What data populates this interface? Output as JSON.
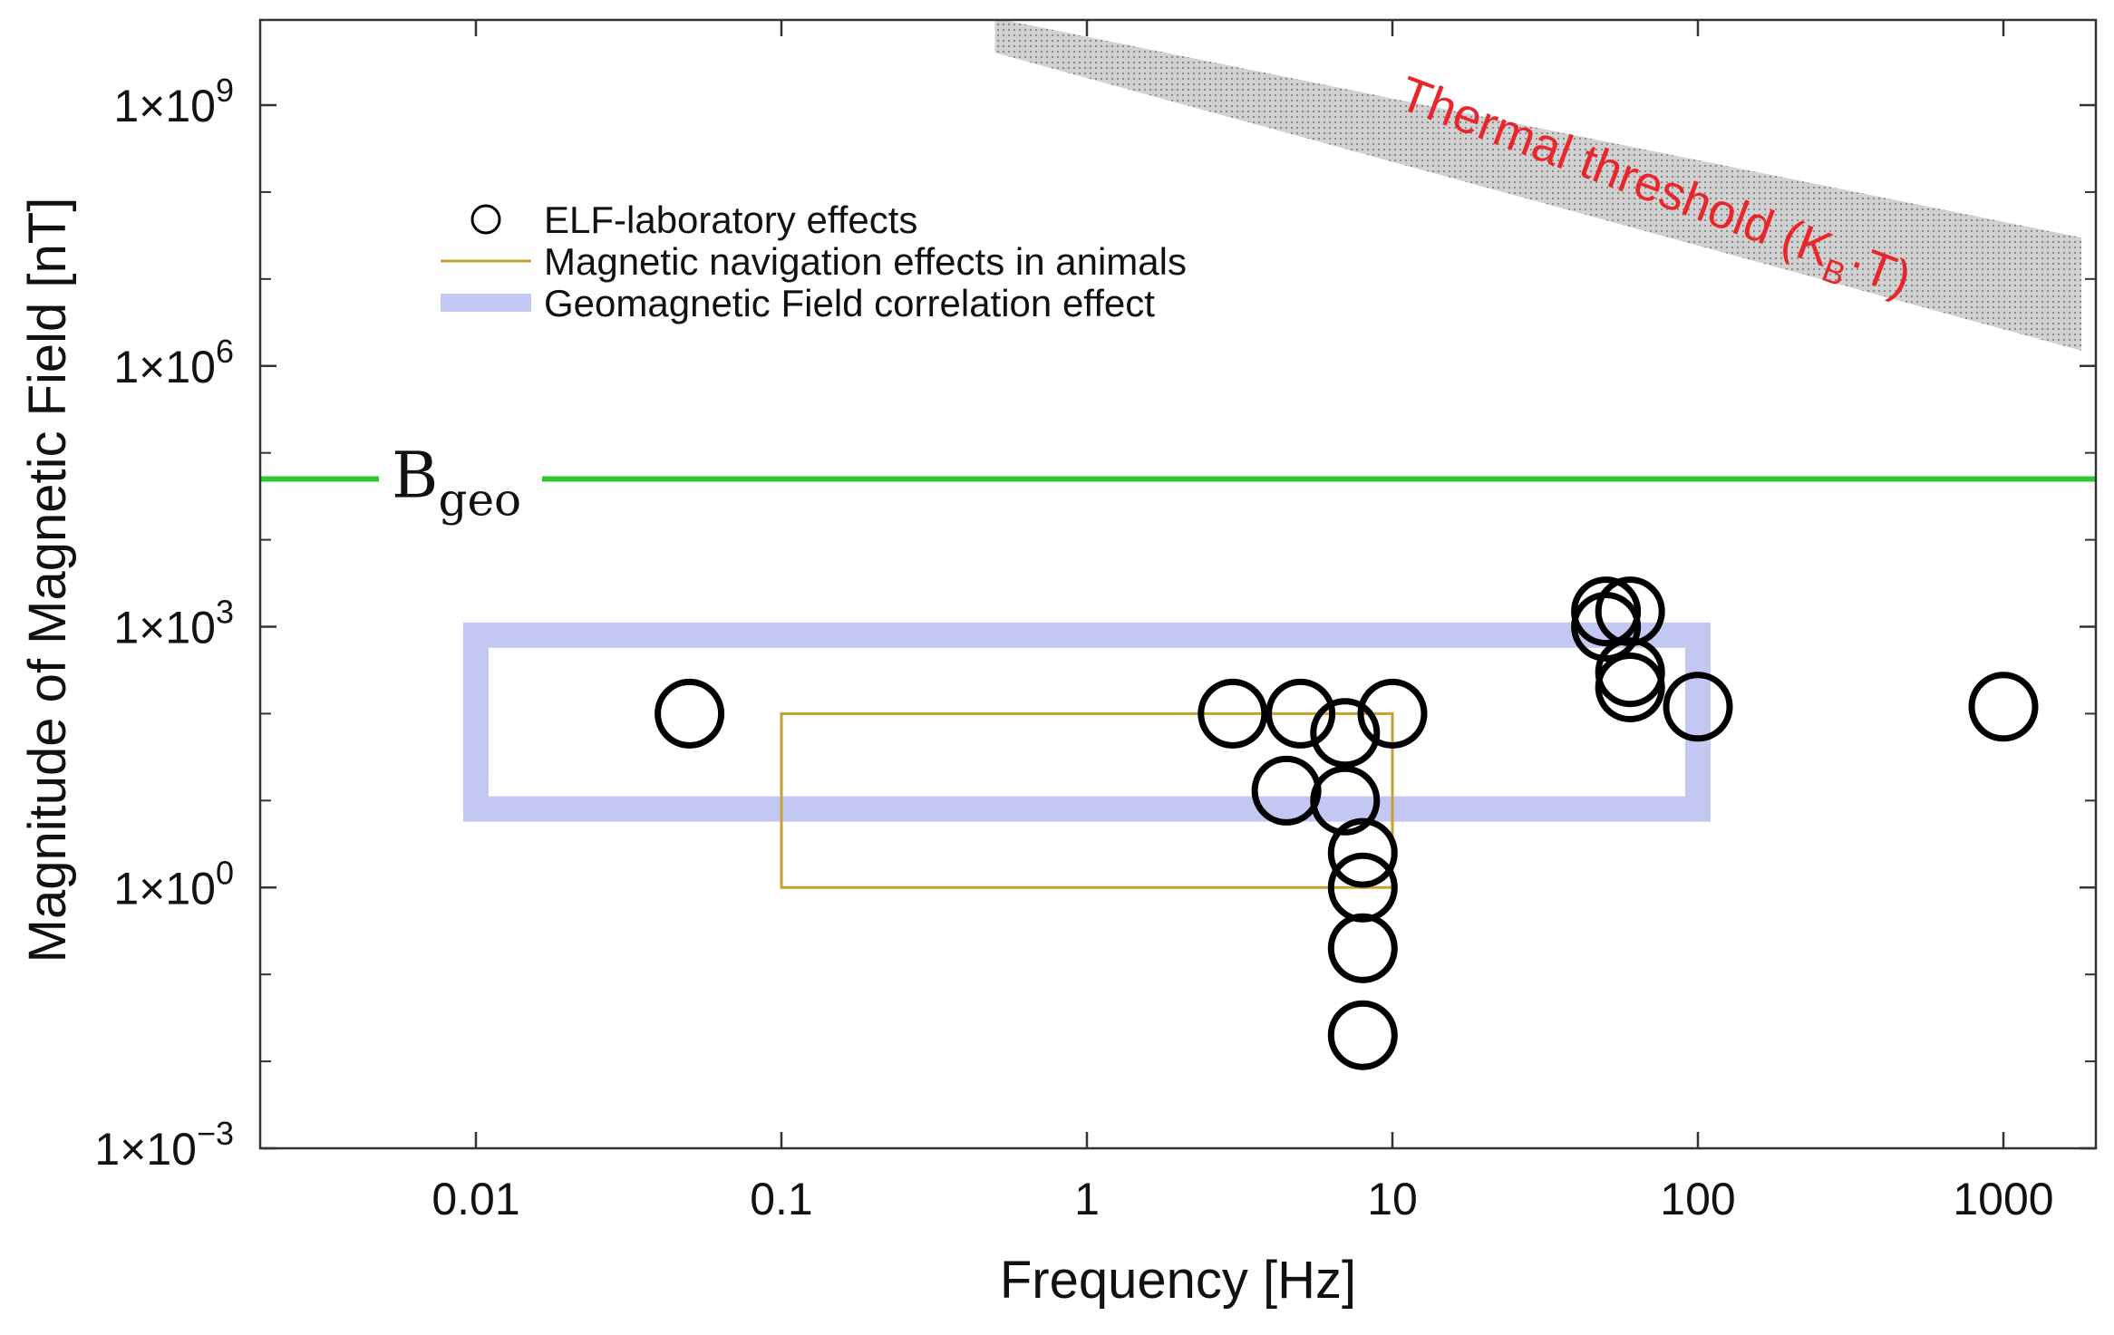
{
  "chart_data": {
    "type": "scatter",
    "x_scale": "log",
    "y_scale": "log",
    "xlim": [
      0.0024,
      1800
    ],
    "ylim": [
      0.001,
      10000000000.0
    ],
    "xlabel": "Frequency [Hz]",
    "ylabel": "Magnitude of Magnetic Field [nT]",
    "x_ticks": [
      {
        "value": 0.01,
        "label": "0.01"
      },
      {
        "value": 0.1,
        "label": "0.1"
      },
      {
        "value": 1,
        "label": "1"
      },
      {
        "value": 10,
        "label": "10"
      },
      {
        "value": 100,
        "label": "100"
      },
      {
        "value": 1000,
        "label": "1000"
      }
    ],
    "y_ticks": [
      {
        "value": 0.001,
        "base": "1×10",
        "exp": "−3"
      },
      {
        "value": 1,
        "base": "1×10",
        "exp": "0"
      },
      {
        "value": 1000,
        "base": "1×10",
        "exp": "3"
      },
      {
        "value": 1000000,
        "base": "1×10",
        "exp": "6"
      },
      {
        "value": 1000000000,
        "base": "1×10",
        "exp": "9"
      }
    ],
    "y_minor_ticks": [
      0.01,
      0.1,
      10,
      100,
      10000,
      100000,
      10000000,
      100000000
    ],
    "legend": {
      "placement": "upper-left",
      "items": [
        {
          "key": "elf",
          "label": "ELF-laboratory effects",
          "symbol": "circle"
        },
        {
          "key": "nav",
          "label": "Magnetic navigation effects in animals",
          "symbol": "line",
          "color": "#c8a030"
        },
        {
          "key": "geo",
          "label": "Geomagnetic Field correlation effect",
          "symbol": "thick-line",
          "color": "#c3c8f3"
        }
      ]
    },
    "series": [
      {
        "name": "ELF-laboratory effects",
        "marker": "open-circle",
        "points": [
          {
            "x": 0.05,
            "y": 100
          },
          {
            "x": 3,
            "y": 100
          },
          {
            "x": 5,
            "y": 100
          },
          {
            "x": 10,
            "y": 100
          },
          {
            "x": 7,
            "y": 60
          },
          {
            "x": 4.5,
            "y": 13
          },
          {
            "x": 7,
            "y": 10
          },
          {
            "x": 8,
            "y": 2.5
          },
          {
            "x": 8,
            "y": 1
          },
          {
            "x": 8,
            "y": 0.2
          },
          {
            "x": 8,
            "y": 0.02
          },
          {
            "x": 50,
            "y": 1500
          },
          {
            "x": 50,
            "y": 1000
          },
          {
            "x": 60,
            "y": 1500
          },
          {
            "x": 60,
            "y": 200
          },
          {
            "x": 60,
            "y": 300
          },
          {
            "x": 100,
            "y": 120
          },
          {
            "x": 1000,
            "y": 120
          }
        ]
      }
    ],
    "regions": [
      {
        "name": "Magnetic navigation effects in animals",
        "x": [
          0.1,
          10
        ],
        "y": [
          1,
          100
        ],
        "color": "#c8a030"
      },
      {
        "name": "Geomagnetic Field correlation effect",
        "x": [
          0.01,
          100
        ],
        "y": [
          8,
          800
        ],
        "color": "#c3c8f3"
      }
    ],
    "reference_line": {
      "label_main": "B",
      "label_sub": "geo",
      "y": 50000,
      "color": "#2ec82e"
    },
    "threshold_band": {
      "label": "Thermal threshold (K",
      "label_sub": "B",
      "label_end": "·T)",
      "label_color": "#e8262b",
      "fill": "#c9c9c9",
      "upper": [
        [
          0.5,
          10000000000.0
        ],
        [
          1800,
          30000000.0
        ]
      ],
      "lower": [
        [
          0.5,
          4000000000.0
        ],
        [
          1800,
          1500000.0
        ]
      ]
    }
  }
}
